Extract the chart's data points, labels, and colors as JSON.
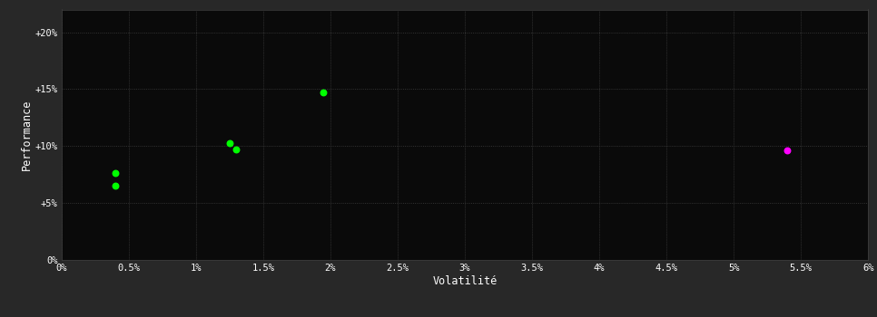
{
  "background_color": "#282828",
  "plot_bg_color": "#0a0a0a",
  "grid_color": "#404040",
  "text_color": "#ffffff",
  "xlabel": "Volatilité",
  "ylabel": "Performance",
  "xlim": [
    0.0,
    0.06
  ],
  "ylim": [
    0.0,
    0.22
  ],
  "xtick_values": [
    0.0,
    0.005,
    0.01,
    0.015,
    0.02,
    0.025,
    0.03,
    0.035,
    0.04,
    0.045,
    0.05,
    0.055,
    0.06
  ],
  "xtick_labels": [
    "0%",
    "0.5%",
    "1%",
    "1.5%",
    "2%",
    "2.5%",
    "3%",
    "3.5%",
    "4%",
    "4.5%",
    "5%",
    "5.5%",
    "6%"
  ],
  "ytick_values": [
    0.0,
    0.05,
    0.1,
    0.15,
    0.2
  ],
  "ytick_labels": [
    "0%",
    "+5%",
    "+10%",
    "+15%",
    "+20%"
  ],
  "green_points": [
    [
      0.004,
      0.076
    ],
    [
      0.004,
      0.065
    ],
    [
      0.0125,
      0.103
    ],
    [
      0.013,
      0.097
    ],
    [
      0.0195,
      0.147
    ]
  ],
  "magenta_points": [
    [
      0.054,
      0.096
    ]
  ],
  "green_color": "#00ff00",
  "magenta_color": "#ff00ff",
  "marker_size": 22
}
